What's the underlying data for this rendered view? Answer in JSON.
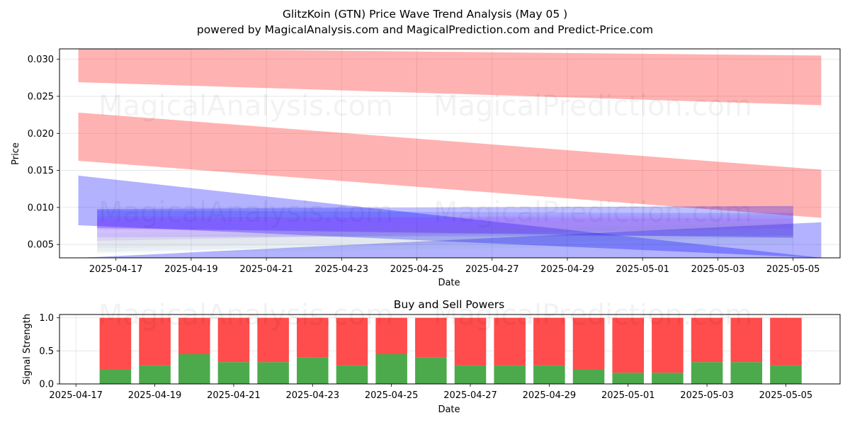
{
  "title_line1": "GlitzKoin (GTN) Price Wave Trend Analysis (May 05 )",
  "title_line2": "powered by MagicalAnalysis.com and MagicalPrediction.com and Predict-Price.com",
  "watermarks": [
    "MagicalAnalysis.com",
    "MagicalPrediction.com"
  ],
  "chart_data": [
    {
      "type": "area",
      "xlabel": "Date",
      "ylabel": "Price",
      "x_range": [
        "2025-04-15T12:00",
        "2025-05-06T06:00"
      ],
      "ylim": [
        0.0032,
        0.0314
      ],
      "grid": true,
      "x_ticks": [
        "2025-04-17",
        "2025-04-19",
        "2025-04-21",
        "2025-04-23",
        "2025-04-25",
        "2025-04-27",
        "2025-04-29",
        "2025-05-01",
        "2025-05-03",
        "2025-05-05"
      ],
      "y_ticks": [
        0.005,
        0.01,
        0.015,
        0.02,
        0.025,
        0.03
      ],
      "y_tick_labels": [
        "0.005",
        "0.010",
        "0.015",
        "0.020",
        "0.025",
        "0.030"
      ],
      "bands": [
        {
          "color": "#ff0000",
          "opacity": 0.3,
          "x_start": "2025-04-16",
          "x_end": "2025-05-05T18:00",
          "upper": [
            0.0315,
            0.0305
          ],
          "lower": [
            0.0269,
            0.0238
          ]
        },
        {
          "color": "#ff0000",
          "opacity": 0.3,
          "x_start": "2025-04-16",
          "x_end": "2025-05-05T18:00",
          "upper": [
            0.0228,
            0.0151
          ],
          "lower": [
            0.0163,
            0.0086
          ]
        },
        {
          "color": "#0000ff",
          "opacity": 0.3,
          "x_start": "2025-04-16",
          "x_end": "2025-05-05T18:00",
          "upper": [
            0.0143,
            0.0032
          ],
          "lower": [
            0.0076,
            0.0032
          ]
        },
        {
          "color": "#0000ff",
          "opacity": 0.3,
          "x_start": "2025-04-16",
          "x_end": "2025-05-05T18:00",
          "upper": [
            0.0032,
            0.008
          ],
          "lower": [
            0.0032,
            0.0032
          ]
        },
        {
          "color": "#0000ff",
          "opacity": 0.25,
          "x_start": "2025-04-16T12:00",
          "x_end": "2025-05-05",
          "upper": [
            0.0098,
            0.0102
          ],
          "lower": [
            0.0072,
            0.0059
          ]
        },
        {
          "color": "#0000ff",
          "opacity": 0.12,
          "x_start": "2025-04-16T12:00",
          "x_end": "2025-05-05",
          "upper": [
            0.0096,
            0.0092
          ],
          "lower": [
            0.006,
            0.0062
          ]
        },
        {
          "color": "#9900ff",
          "opacity": 0.1,
          "x_start": "2025-04-16T12:00",
          "x_end": "2025-05-05",
          "upper": [
            0.0088,
            0.0085
          ],
          "lower": [
            0.0055,
            0.0072
          ]
        },
        {
          "color": "#6666ff",
          "opacity": 0.08,
          "x_start": "2025-04-16T12:00",
          "x_end": "2025-05-05",
          "upper": [
            0.008,
            0.0095
          ],
          "lower": [
            0.004,
            0.006
          ]
        },
        {
          "color": "#ff00ff",
          "opacity": 0.06,
          "x_start": "2025-04-16T12:00",
          "x_end": "2025-05-05",
          "upper": [
            0.0085,
            0.009
          ],
          "lower": [
            0.007,
            0.006
          ]
        },
        {
          "color": "#33aa33",
          "opacity": 0.05,
          "x_start": "2025-04-16T12:00",
          "x_end": "2025-05-05",
          "upper": [
            0.006,
            0.008
          ],
          "lower": [
            0.0038,
            0.005
          ]
        },
        {
          "color": "#888888",
          "opacity": 0.06,
          "x_start": "2025-04-16T12:00",
          "x_end": "2025-05-05",
          "upper": [
            0.0065,
            0.009
          ],
          "lower": [
            0.0045,
            0.006
          ]
        }
      ]
    },
    {
      "type": "bar",
      "title": "Buy and Sell Powers",
      "xlabel": "Date",
      "ylabel": "Signal Strength",
      "x_range": [
        "2025-04-16T14:00",
        "2025-05-06T09:00"
      ],
      "ylim": [
        0,
        1.05
      ],
      "grid": true,
      "x_ticks": [
        "2025-04-17",
        "2025-04-19",
        "2025-04-21",
        "2025-04-23",
        "2025-04-25",
        "2025-04-27",
        "2025-04-29",
        "2025-05-01",
        "2025-05-03",
        "2025-05-05"
      ],
      "y_ticks": [
        0.0,
        0.5,
        1.0
      ],
      "y_tick_labels": [
        "0.0",
        "0.5",
        "1.0"
      ],
      "categories": [
        "2025-04-18",
        "2025-04-19",
        "2025-04-20",
        "2025-04-21",
        "2025-04-22",
        "2025-04-23",
        "2025-04-24",
        "2025-04-25",
        "2025-04-26",
        "2025-04-27",
        "2025-04-28",
        "2025-04-29",
        "2025-04-30",
        "2025-05-01",
        "2025-05-02",
        "2025-05-03",
        "2025-05-04",
        "2025-05-05"
      ],
      "series": [
        {
          "color": "#4caa4c",
          "values": [
            0.22,
            0.28,
            0.45,
            0.33,
            0.33,
            0.4,
            0.28,
            0.45,
            0.4,
            0.28,
            0.28,
            0.28,
            0.22,
            0.17,
            0.17,
            0.33,
            0.33,
            0.28
          ]
        },
        {
          "color": "#ff4c4c",
          "values": [
            0.78,
            0.72,
            0.55,
            0.67,
            0.67,
            0.6,
            0.72,
            0.55,
            0.6,
            0.72,
            0.72,
            0.72,
            0.78,
            0.83,
            0.83,
            0.67,
            0.67,
            0.72
          ]
        }
      ]
    }
  ]
}
